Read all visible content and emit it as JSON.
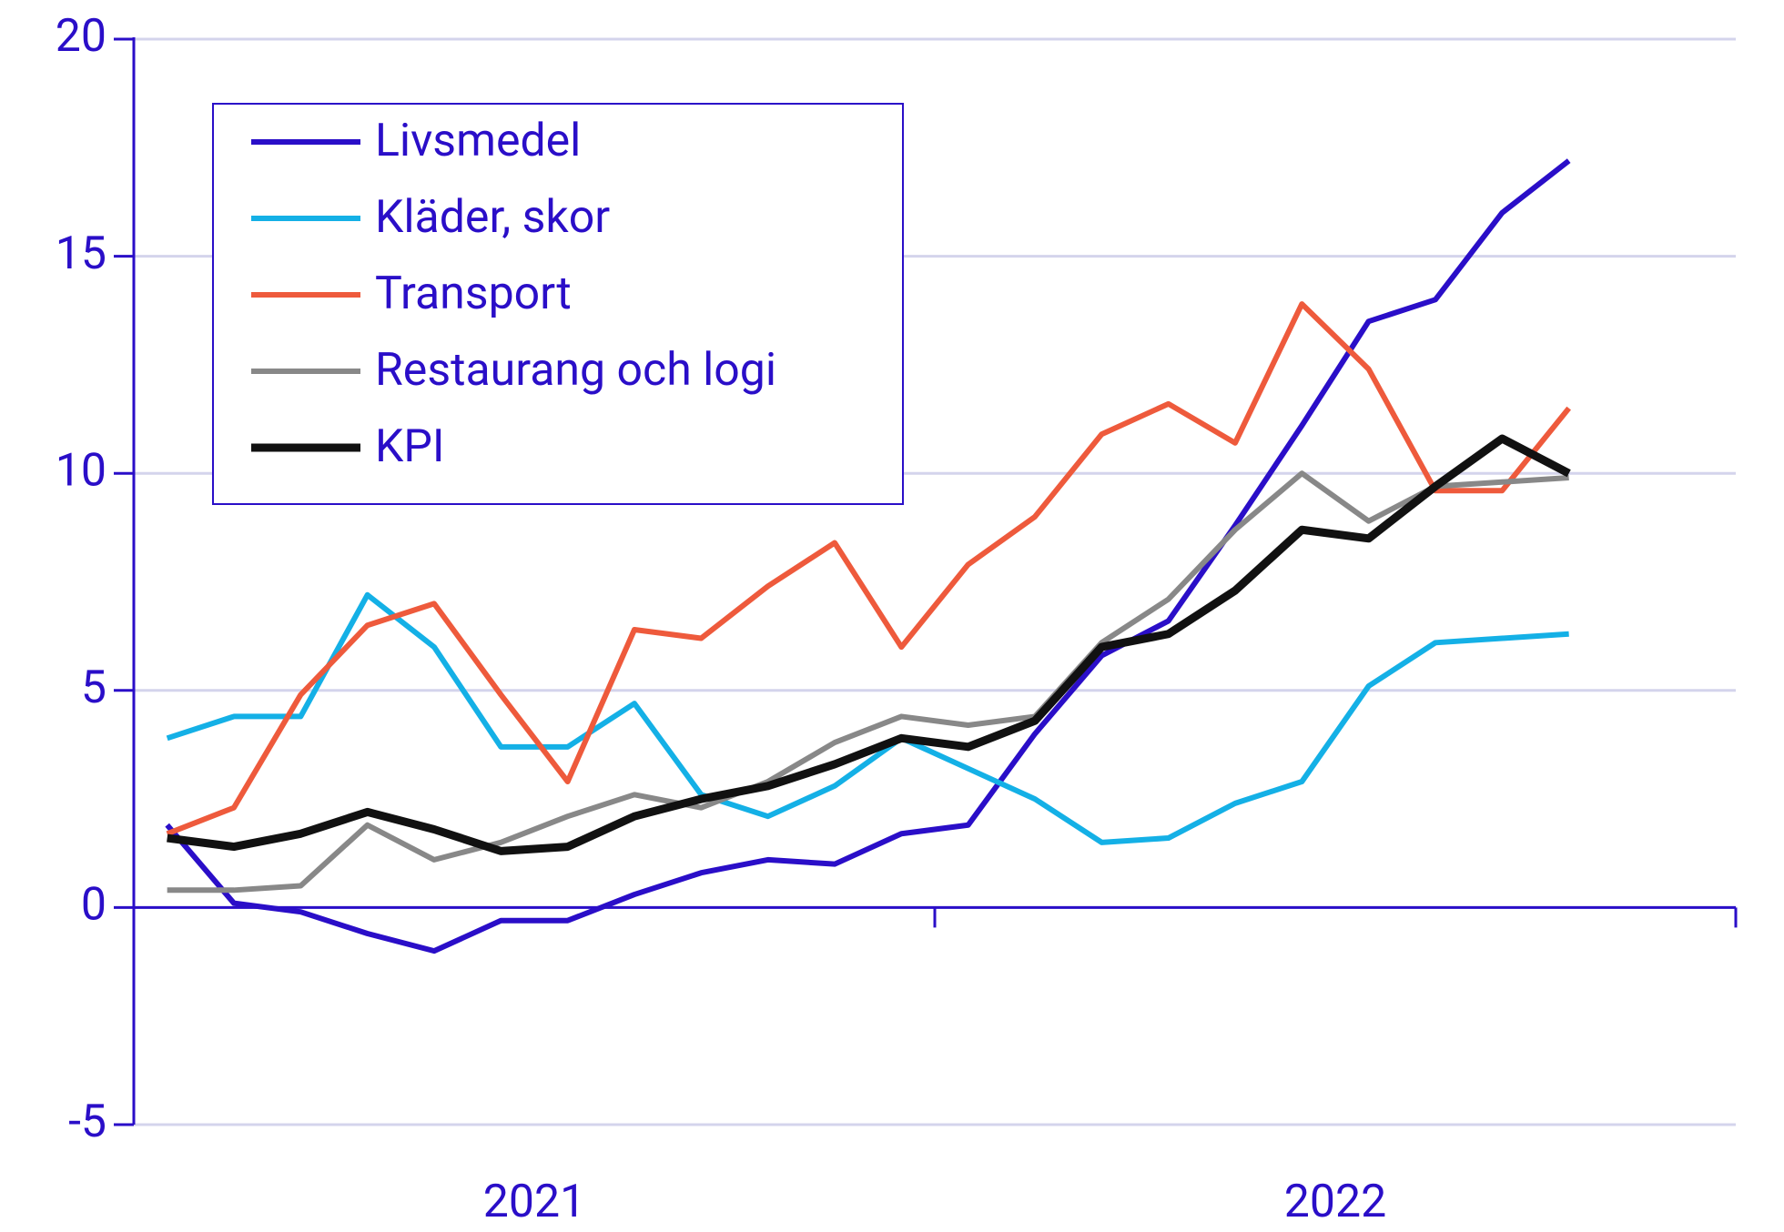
{
  "chart_data": {
    "type": "line",
    "categories": [
      null,
      null,
      null,
      null,
      null,
      null,
      null,
      null,
      null,
      null,
      null,
      null,
      null,
      null,
      null,
      null,
      null,
      null,
      null,
      null,
      null,
      null
    ],
    "x_group_labels": [
      "2021",
      "2022"
    ],
    "series": [
      {
        "name": "Livsmedel",
        "color": "#2a0ec8",
        "values": [
          1.9,
          0.1,
          -0.1,
          -0.6,
          -1.0,
          -0.3,
          -0.3,
          0.3,
          0.8,
          1.1,
          1.0,
          1.7,
          1.9,
          4.0,
          5.8,
          6.6,
          8.8,
          11.1,
          13.5,
          14.0,
          16.0,
          17.2
        ]
      },
      {
        "name": "Kläder, skor",
        "color": "#14b0e6",
        "values": [
          3.9,
          4.4,
          4.4,
          7.2,
          6.0,
          3.7,
          3.7,
          4.7,
          2.6,
          2.1,
          2.8,
          3.9,
          3.2,
          2.5,
          1.5,
          1.6,
          2.4,
          2.9,
          5.1,
          6.1,
          6.2,
          6.3
        ]
      },
      {
        "name": "Transport",
        "color": "#ee5a3c",
        "values": [
          1.7,
          2.3,
          4.9,
          6.5,
          7.0,
          4.9,
          2.9,
          6.4,
          6.2,
          7.4,
          8.4,
          6.0,
          7.9,
          9.0,
          10.9,
          11.6,
          10.7,
          13.9,
          12.4,
          9.6,
          9.6,
          11.5
        ]
      },
      {
        "name": "Restaurang och logi",
        "color": "#888888",
        "values": [
          0.4,
          0.4,
          0.5,
          1.9,
          1.1,
          1.5,
          2.1,
          2.6,
          2.3,
          2.9,
          3.8,
          4.4,
          4.2,
          4.4,
          6.1,
          7.1,
          8.7,
          10.0,
          8.9,
          9.7,
          9.8,
          9.9
        ]
      },
      {
        "name": "KPI",
        "color": "#111111",
        "values": [
          1.6,
          1.4,
          1.7,
          2.2,
          1.8,
          1.3,
          1.4,
          2.1,
          2.5,
          2.8,
          3.3,
          3.9,
          3.7,
          4.3,
          6.0,
          6.3,
          7.3,
          8.7,
          8.5,
          9.7,
          10.8,
          10.0
        ]
      }
    ],
    "ylim": [
      -5,
      20
    ],
    "yticks": [
      -5,
      0,
      5,
      10,
      15,
      20
    ],
    "grid": true,
    "legend": "upper left"
  }
}
